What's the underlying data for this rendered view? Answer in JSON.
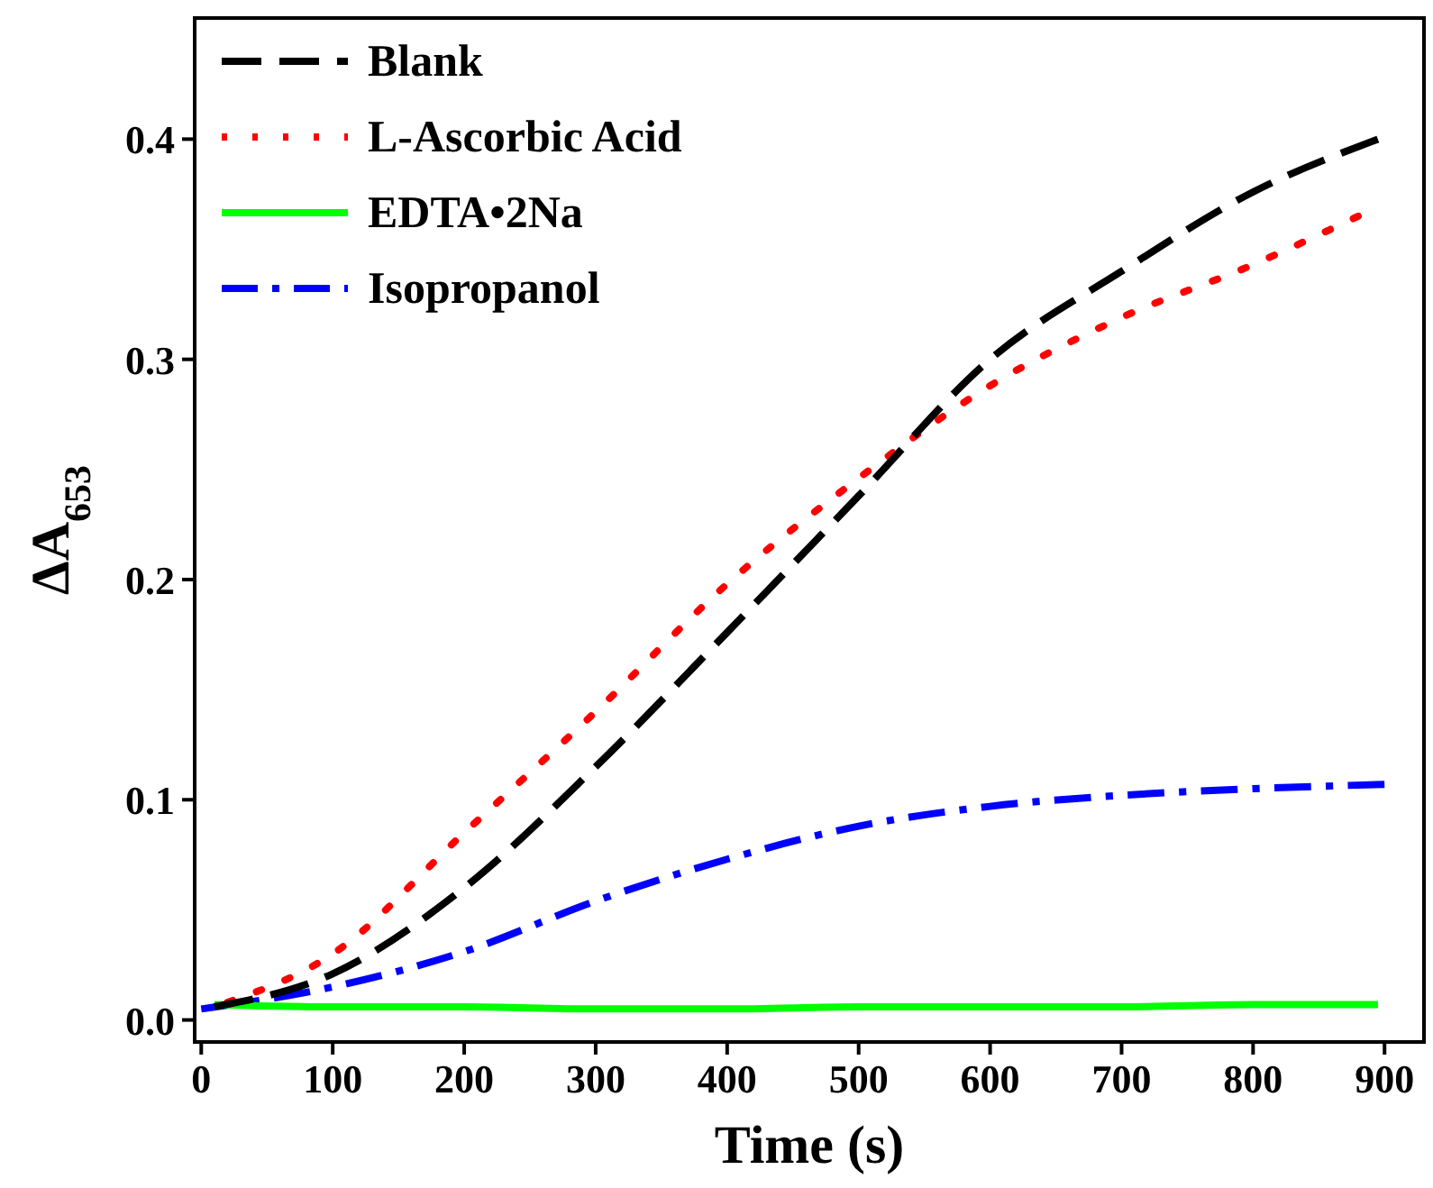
{
  "chart_data": {
    "type": "line",
    "xlabel": "Time (s)",
    "ylabel": "ΔA$_{653}$",
    "xlim": [
      -5,
      930
    ],
    "ylim": [
      -0.01,
      0.455
    ],
    "xticks": [
      0,
      100,
      200,
      300,
      400,
      500,
      600,
      700,
      800,
      900
    ],
    "yticks": [
      {
        "value": 0,
        "label": "0.0"
      },
      {
        "value": 0.1,
        "label": "0.1"
      },
      {
        "value": 0.2,
        "label": "0.2"
      },
      {
        "value": 0.3,
        "label": "0.3"
      },
      {
        "value": 0.4,
        "label": "0.4"
      }
    ],
    "grid": false,
    "legend": "top left",
    "x": [
      10,
      100,
      200,
      300,
      400,
      500,
      600,
      700,
      800,
      895
    ],
    "series": [
      {
        "name": "Blank",
        "color": "#000000",
        "line_style": "dashed",
        "values": [
          0.006,
          0.021,
          0.06,
          0.115,
          0.176,
          0.238,
          0.3,
          0.34,
          0.376,
          0.4
        ]
      },
      {
        "name": "L-Ascorbic Acid",
        "color": "#ff0000",
        "line_style": "dotted",
        "x": [
          20,
          100,
          200,
          300,
          400,
          500,
          600,
          700,
          800,
          880
        ],
        "values": [
          0.008,
          0.03,
          0.085,
          0.14,
          0.198,
          0.246,
          0.288,
          0.319,
          0.343,
          0.365
        ]
      },
      {
        "name": "EDTA•2Na",
        "color": "#00ff00",
        "line_style": "solid",
        "values": [
          0.007,
          0.006,
          0.006,
          0.005,
          0.005,
          0.006,
          0.006,
          0.006,
          0.007,
          0.007
        ]
      },
      {
        "name": "Isopropanol",
        "color": "#0000ff",
        "line_style": "dashdot",
        "x": [
          0,
          100,
          200,
          300,
          400,
          500,
          600,
          700,
          800,
          900
        ],
        "values": [
          0.005,
          0.015,
          0.031,
          0.054,
          0.073,
          0.088,
          0.097,
          0.102,
          0.105,
          0.107
        ]
      }
    ]
  }
}
